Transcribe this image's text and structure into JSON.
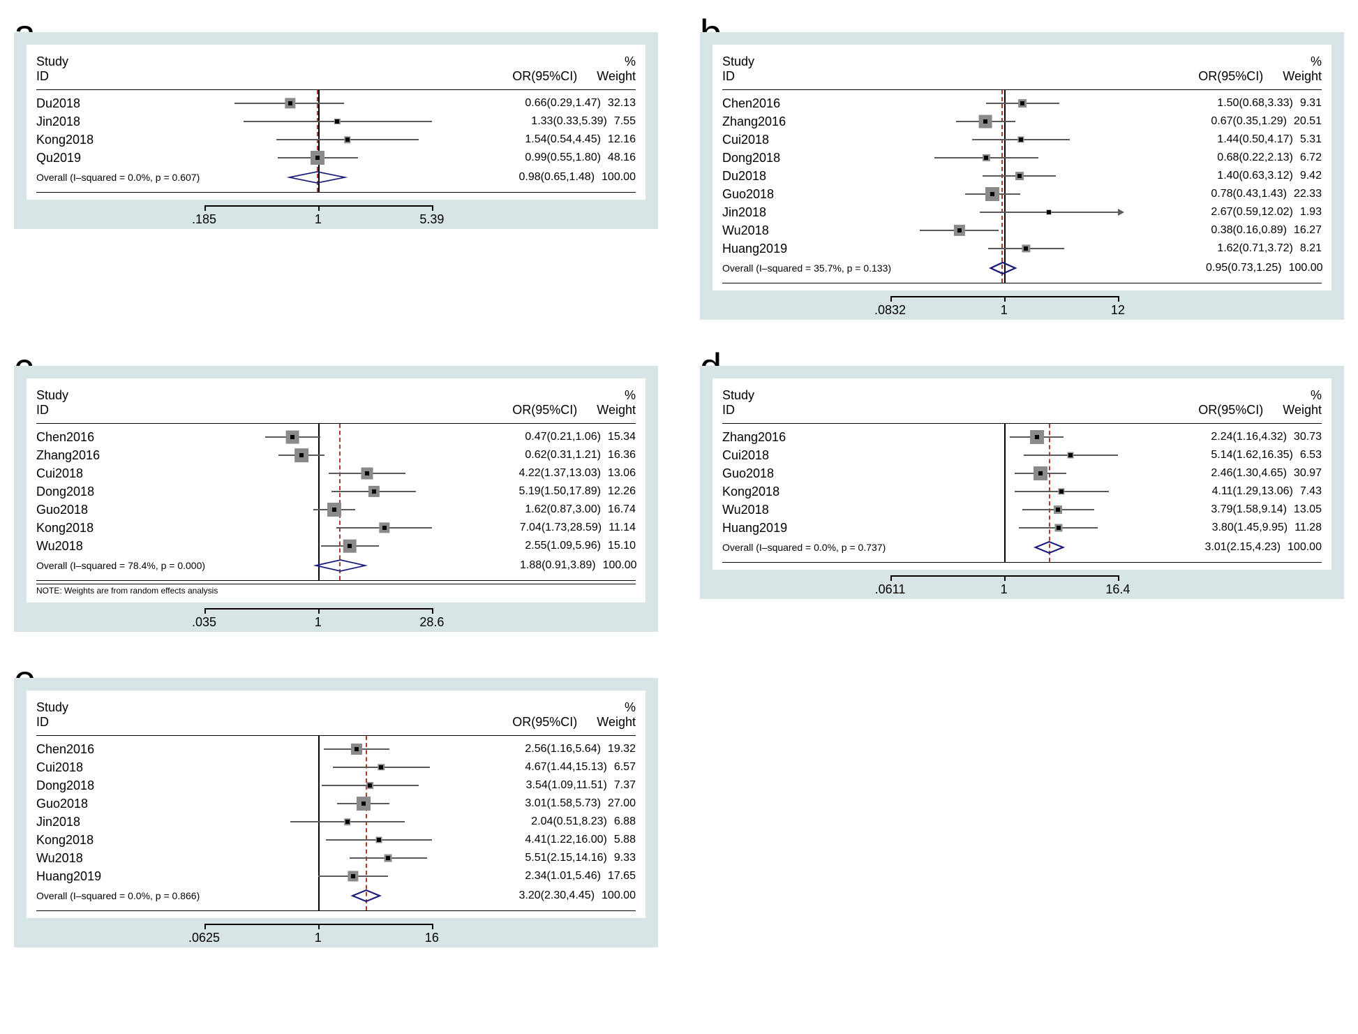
{
  "layout": {
    "panel_bg": "#d7e5e6",
    "plot_bg": "#ffffff",
    "ci_line_color": "#5a5a5a",
    "ci_box_color": "#8a8a8a",
    "ci_point_color": "#000000",
    "ref_line_color": "#000000",
    "pooled_line_color": "#b33a2a",
    "diamond_stroke": "#1a1a7a",
    "font_family": "Arial",
    "header_study_top": "Study",
    "header_study_bottom": "ID",
    "header_or": "OR(95%CI)",
    "header_wt_top": "%",
    "header_wt_bottom": "Weight"
  },
  "panels": {
    "a": {
      "label": "a",
      "axis": {
        "min_label": ".185",
        "mid_label": "1",
        "max_label": "5.39",
        "log_min": 0.185,
        "log_max": 5.39
      },
      "pooled_or": 0.98,
      "studies": [
        {
          "id": "Du2018",
          "or": 0.66,
          "lo": 0.29,
          "hi": 1.47,
          "wt": 32.13,
          "text": "0.66(0.29,1.47)"
        },
        {
          "id": "Jin2018",
          "or": 1.33,
          "lo": 0.33,
          "hi": 5.39,
          "wt": 7.55,
          "text": "1.33(0.33,5.39)"
        },
        {
          "id": "Kong2018",
          "or": 1.54,
          "lo": 0.54,
          "hi": 4.45,
          "wt": 12.16,
          "text": "1.54(0.54,4.45)"
        },
        {
          "id": "Qu2019",
          "or": 0.99,
          "lo": 0.55,
          "hi": 1.8,
          "wt": 48.16,
          "text": "0.99(0.55,1.80)"
        }
      ],
      "overall": {
        "label": "Overall  (I–squared = 0.0%, p = 0.607)",
        "or": 0.98,
        "lo": 0.65,
        "hi": 1.48,
        "wt": 100.0,
        "text": "0.98(0.65,1.48)"
      },
      "note": null
    },
    "b": {
      "label": "b",
      "axis": {
        "min_label": ".0832",
        "mid_label": "1",
        "max_label": "12",
        "log_min": 0.0832,
        "log_max": 12.0
      },
      "pooled_or": 0.95,
      "studies": [
        {
          "id": "Chen2016",
          "or": 1.5,
          "lo": 0.68,
          "hi": 3.33,
          "wt": 9.31,
          "text": "1.50(0.68,3.33)"
        },
        {
          "id": "Zhang2016",
          "or": 0.67,
          "lo": 0.35,
          "hi": 1.29,
          "wt": 20.51,
          "text": "0.67(0.35,1.29)"
        },
        {
          "id": "Cui2018",
          "or": 1.44,
          "lo": 0.5,
          "hi": 4.17,
          "wt": 5.31,
          "text": "1.44(0.50,4.17)"
        },
        {
          "id": "Dong2018",
          "or": 0.68,
          "lo": 0.22,
          "hi": 2.13,
          "wt": 6.72,
          "text": "0.68(0.22,2.13)"
        },
        {
          "id": "Du2018",
          "or": 1.4,
          "lo": 0.63,
          "hi": 3.12,
          "wt": 9.42,
          "text": "1.40(0.63,3.12)"
        },
        {
          "id": "Guo2018",
          "or": 0.78,
          "lo": 0.43,
          "hi": 1.43,
          "wt": 22.33,
          "text": "0.78(0.43,1.43)"
        },
        {
          "id": "Jin2018",
          "or": 2.67,
          "lo": 0.59,
          "hi": 12.02,
          "wt": 1.93,
          "text": "2.67(0.59,12.02)",
          "arrow_right": true
        },
        {
          "id": "Wu2018",
          "or": 0.38,
          "lo": 0.16,
          "hi": 0.89,
          "wt": 16.27,
          "text": "0.38(0.16,0.89)"
        },
        {
          "id": "Huang2019",
          "or": 1.62,
          "lo": 0.71,
          "hi": 3.72,
          "wt": 8.21,
          "text": "1.62(0.71,3.72)"
        }
      ],
      "overall": {
        "label": "Overall  (I–squared = 35.7%, p = 0.133)",
        "or": 0.95,
        "lo": 0.73,
        "hi": 1.25,
        "wt": 100.0,
        "text": "0.95(0.73,1.25)"
      },
      "note": null
    },
    "c": {
      "label": "c",
      "axis": {
        "min_label": ".035",
        "mid_label": "1",
        "max_label": "28.6",
        "log_min": 0.035,
        "log_max": 28.6
      },
      "pooled_or": 1.88,
      "studies": [
        {
          "id": "Chen2016",
          "or": 0.47,
          "lo": 0.21,
          "hi": 1.06,
          "wt": 15.34,
          "text": "0.47(0.21,1.06)"
        },
        {
          "id": "Zhang2016",
          "or": 0.62,
          "lo": 0.31,
          "hi": 1.21,
          "wt": 16.36,
          "text": "0.62(0.31,1.21)"
        },
        {
          "id": "Cui2018",
          "or": 4.22,
          "lo": 1.37,
          "hi": 13.03,
          "wt": 13.06,
          "text": "4.22(1.37,13.03)"
        },
        {
          "id": "Dong2018",
          "or": 5.19,
          "lo": 1.5,
          "hi": 17.89,
          "wt": 12.26,
          "text": "5.19(1.50,17.89)"
        },
        {
          "id": "Guo2018",
          "or": 1.62,
          "lo": 0.87,
          "hi": 3.0,
          "wt": 16.74,
          "text": "1.62(0.87,3.00)"
        },
        {
          "id": "Kong2018",
          "or": 7.04,
          "lo": 1.73,
          "hi": 28.59,
          "wt": 11.14,
          "text": "7.04(1.73,28.59)"
        },
        {
          "id": "Wu2018",
          "or": 2.55,
          "lo": 1.09,
          "hi": 5.96,
          "wt": 15.1,
          "text": "2.55(1.09,5.96)"
        }
      ],
      "overall": {
        "label": "Overall  (I–squared = 78.4%, p = 0.000)",
        "or": 1.88,
        "lo": 0.91,
        "hi": 3.89,
        "wt": 100.0,
        "text": "1.88(0.91,3.89)"
      },
      "note": "NOTE: Weights are from random effects analysis"
    },
    "d": {
      "label": "d",
      "axis": {
        "min_label": ".0611",
        "mid_label": "1",
        "max_label": "16.4",
        "log_min": 0.0611,
        "log_max": 16.4
      },
      "pooled_or": 3.01,
      "studies": [
        {
          "id": "Zhang2016",
          "or": 2.24,
          "lo": 1.16,
          "hi": 4.32,
          "wt": 30.73,
          "text": "2.24(1.16,4.32)"
        },
        {
          "id": "Cui2018",
          "or": 5.14,
          "lo": 1.62,
          "hi": 16.35,
          "wt": 6.53,
          "text": "5.14(1.62,16.35)"
        },
        {
          "id": "Guo2018",
          "or": 2.46,
          "lo": 1.3,
          "hi": 4.65,
          "wt": 30.97,
          "text": "2.46(1.30,4.65)"
        },
        {
          "id": "Kong2018",
          "or": 4.11,
          "lo": 1.29,
          "hi": 13.06,
          "wt": 7.43,
          "text": "4.11(1.29,13.06)"
        },
        {
          "id": "Wu2018",
          "or": 3.79,
          "lo": 1.58,
          "hi": 9.14,
          "wt": 13.05,
          "text": "3.79(1.58,9.14)"
        },
        {
          "id": "Huang2019",
          "or": 3.8,
          "lo": 1.45,
          "hi": 9.95,
          "wt": 11.28,
          "text": "3.80(1.45,9.95)"
        }
      ],
      "overall": {
        "label": "Overall  (I–squared = 0.0%, p = 0.737)",
        "or": 3.01,
        "lo": 2.15,
        "hi": 4.23,
        "wt": 100.0,
        "text": "3.01(2.15,4.23)"
      },
      "note": null
    },
    "e": {
      "label": "e",
      "axis": {
        "min_label": ".0625",
        "mid_label": "1",
        "max_label": "16",
        "log_min": 0.0625,
        "log_max": 16.0
      },
      "pooled_or": 3.2,
      "studies": [
        {
          "id": "Chen2016",
          "or": 2.56,
          "lo": 1.16,
          "hi": 5.64,
          "wt": 19.32,
          "text": "2.56(1.16,5.64)"
        },
        {
          "id": "Cui2018",
          "or": 4.67,
          "lo": 1.44,
          "hi": 15.13,
          "wt": 6.57,
          "text": "4.67(1.44,15.13)"
        },
        {
          "id": "Dong2018",
          "or": 3.54,
          "lo": 1.09,
          "hi": 11.51,
          "wt": 7.37,
          "text": "3.54(1.09,11.51)"
        },
        {
          "id": "Guo2018",
          "or": 3.01,
          "lo": 1.58,
          "hi": 5.73,
          "wt": 27.0,
          "text": "3.01(1.58,5.73)"
        },
        {
          "id": "Jin2018",
          "or": 2.04,
          "lo": 0.51,
          "hi": 8.23,
          "wt": 6.88,
          "text": "2.04(0.51,8.23)"
        },
        {
          "id": "Kong2018",
          "or": 4.41,
          "lo": 1.22,
          "hi": 16.0,
          "wt": 5.88,
          "text": "4.41(1.22,16.00)"
        },
        {
          "id": "Wu2018",
          "or": 5.51,
          "lo": 2.15,
          "hi": 14.16,
          "wt": 9.33,
          "text": "5.51(2.15,14.16)"
        },
        {
          "id": "Huang2019",
          "or": 2.34,
          "lo": 1.01,
          "hi": 5.46,
          "wt": 17.65,
          "text": "2.34(1.01,5.46)"
        }
      ],
      "overall": {
        "label": "Overall  (I–squared = 0.0%, p = 0.866)",
        "or": 3.2,
        "lo": 2.3,
        "hi": 4.45,
        "wt": 100.0,
        "text": "3.20(2.30,4.45)"
      },
      "note": null
    }
  }
}
